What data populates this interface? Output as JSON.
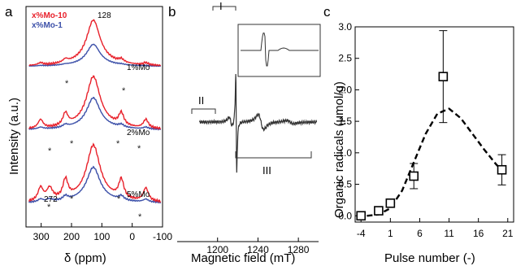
{
  "panels": [
    {
      "letter": "a",
      "chart_data": {
        "type": "line",
        "xlabel": "δ (ppm)",
        "ylabel": "Intensity (a.u.)",
        "xlim": [
          350,
          -100
        ],
        "xticks": [
          300,
          200,
          100,
          0,
          -100
        ],
        "legend": [
          {
            "name": "x%Mo-10",
            "color": "#e8202a"
          },
          {
            "name": "x%Mo-1",
            "color": "#3b4fa8"
          }
        ],
        "peak_label": "128",
        "peak2_label": "272",
        "spinning_sideband_marker": "*",
        "traces": [
          {
            "label": "1%Mo",
            "offset": 1.95,
            "red_peak": 0.75,
            "blue_peak": 0.36
          },
          {
            "label": "2%Mo",
            "offset": 1.0,
            "red_peak": 0.86,
            "blue_peak": 0.52
          },
          {
            "label": "5%Mo",
            "offset": 0.0,
            "red_peak": 0.93,
            "blue_peak": 0.58
          }
        ]
      }
    },
    {
      "letter": "b",
      "chart_data": {
        "type": "line",
        "xlabel": "Magnetic field (mT)",
        "ylabel": "",
        "xlim": [
          1160,
          1300
        ],
        "xticks": [
          1200,
          1240,
          1280
        ],
        "region_labels": [
          "I",
          "II",
          "III"
        ],
        "color": "#333333"
      }
    },
    {
      "letter": "c",
      "chart_data": {
        "type": "scatter",
        "xlabel": "Pulse number (-)",
        "ylabel": "Organic radicals (μmol/g)",
        "xlim": [
          -5,
          22
        ],
        "ylim": [
          -0.1,
          3.0
        ],
        "xticks": [
          -4,
          1,
          6,
          11,
          16,
          21
        ],
        "yticks": [
          "0.0",
          "0.5",
          "1.0",
          "1.5",
          "2.0",
          "2.5",
          "3.0"
        ],
        "points": [
          {
            "x": -4,
            "y": 0.0,
            "err": 0.0
          },
          {
            "x": -1,
            "y": 0.08,
            "err": 0.0
          },
          {
            "x": 1,
            "y": 0.2,
            "err": 0.0
          },
          {
            "x": 5,
            "y": 0.63,
            "err": 0.2
          },
          {
            "x": 10,
            "y": 2.21,
            "err": 0.73
          },
          {
            "x": 20,
            "y": 0.73,
            "err": 0.24
          }
        ],
        "fit_curve": [
          [
            -3,
            0.0
          ],
          [
            -1,
            0.02
          ],
          [
            1,
            0.12
          ],
          [
            3,
            0.4
          ],
          [
            5,
            0.85
          ],
          [
            7,
            1.3
          ],
          [
            9,
            1.62
          ],
          [
            11,
            1.7
          ],
          [
            13,
            1.55
          ],
          [
            15,
            1.3
          ],
          [
            17,
            1.05
          ],
          [
            19,
            0.82
          ],
          [
            20,
            0.72
          ]
        ]
      }
    }
  ]
}
